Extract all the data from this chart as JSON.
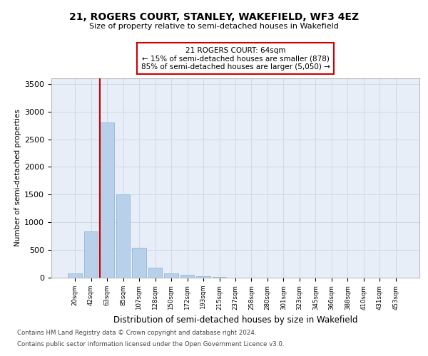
{
  "title1": "21, ROGERS COURT, STANLEY, WAKEFIELD, WF3 4EZ",
  "title2": "Size of property relative to semi-detached houses in Wakefield",
  "xlabel": "Distribution of semi-detached houses by size in Wakefield",
  "ylabel": "Number of semi-detached properties",
  "footer1": "Contains HM Land Registry data © Crown copyright and database right 2024.",
  "footer2": "Contains public sector information licensed under the Open Government Licence v3.0.",
  "bin_labels": [
    "20sqm",
    "42sqm",
    "63sqm",
    "85sqm",
    "107sqm",
    "128sqm",
    "150sqm",
    "172sqm",
    "193sqm",
    "215sqm",
    "237sqm",
    "258sqm",
    "280sqm",
    "301sqm",
    "323sqm",
    "345sqm",
    "366sqm",
    "388sqm",
    "410sqm",
    "431sqm",
    "453sqm"
  ],
  "bar_values": [
    80,
    830,
    2800,
    1500,
    540,
    175,
    75,
    50,
    25,
    12,
    5,
    2,
    1,
    0,
    0,
    0,
    0,
    0,
    0,
    0,
    0
  ],
  "bar_color": "#b8d0ea",
  "bar_edge_color": "#90b8d8",
  "grid_color": "#cdd8e8",
  "property_line_bin": 2,
  "annotation_text1": "21 ROGERS COURT: 64sqm",
  "annotation_text2": "← 15% of semi-detached houses are smaller (878)",
  "annotation_text3": "85% of semi-detached houses are larger (5,050) →",
  "vline_color": "#cc0000",
  "ylim": [
    0,
    3600
  ],
  "yticks": [
    0,
    500,
    1000,
    1500,
    2000,
    2500,
    3000,
    3500
  ],
  "annotation_border_color": "#cc0000",
  "bg_color": "#e8eef8"
}
